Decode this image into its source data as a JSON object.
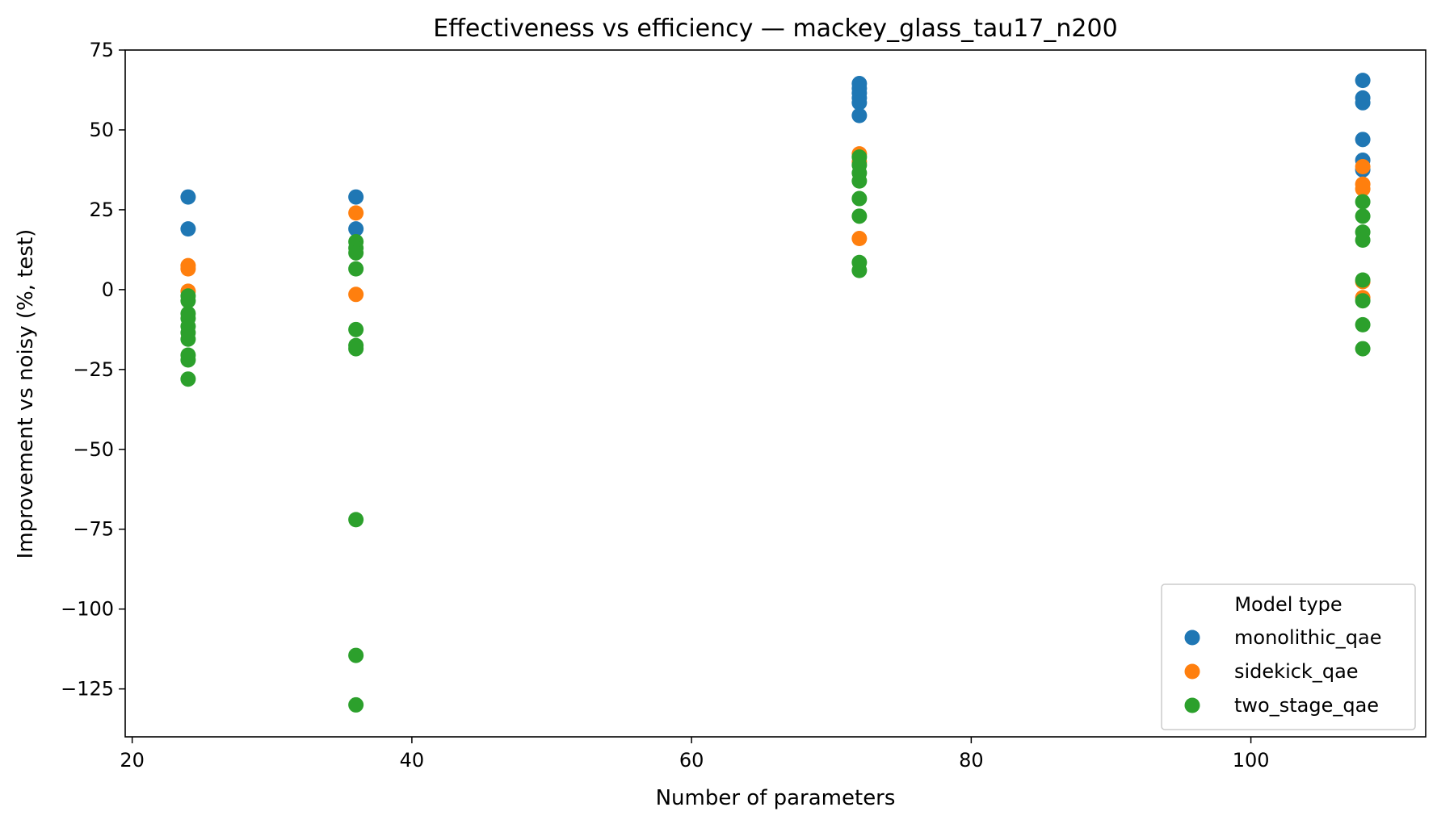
{
  "chart_data": {
    "type": "scatter",
    "title": "Effectiveness vs efficiency — mackey_glass_tau17_n200",
    "xlabel": "Number of parameters",
    "ylabel": "Improvement vs noisy (%, test)",
    "xlim": [
      19.5,
      112.5
    ],
    "ylim": [
      -140,
      75
    ],
    "xticks": [
      20,
      40,
      60,
      80,
      100
    ],
    "yticks": [
      75,
      50,
      25,
      0,
      -25,
      -50,
      -75,
      -100,
      -125
    ],
    "xtick_labels": [
      "20",
      "40",
      "60",
      "80",
      "100"
    ],
    "ytick_labels": [
      "75",
      "50",
      "25",
      "0",
      "−25",
      "−50",
      "−75",
      "−100",
      "−125"
    ],
    "grid": false,
    "legend": {
      "title": "Model type",
      "placement": "lower-right"
    },
    "series": [
      {
        "name": "monolithic_qae",
        "color": "#1f77b4",
        "points": [
          [
            24,
            29
          ],
          [
            24,
            19
          ],
          [
            36,
            29
          ],
          [
            36,
            19
          ],
          [
            72,
            64.5
          ],
          [
            72,
            63
          ],
          [
            72,
            61.5
          ],
          [
            72,
            60
          ],
          [
            72,
            58.5
          ],
          [
            72,
            54.5
          ],
          [
            108,
            65.5
          ],
          [
            108,
            60
          ],
          [
            108,
            58.5
          ],
          [
            108,
            47
          ],
          [
            108,
            40.5
          ],
          [
            108,
            37.5
          ]
        ]
      },
      {
        "name": "sidekick_qae",
        "color": "#ff7f0e",
        "points": [
          [
            24,
            7.5
          ],
          [
            24,
            6.5
          ],
          [
            24,
            -0.5
          ],
          [
            36,
            24
          ],
          [
            36,
            -1.5
          ],
          [
            72,
            42.5
          ],
          [
            72,
            40
          ],
          [
            72,
            16
          ],
          [
            108,
            38.5
          ],
          [
            108,
            33
          ],
          [
            108,
            31.5
          ],
          [
            108,
            2.5
          ],
          [
            108,
            -2.5
          ]
        ]
      },
      {
        "name": "two_stage_qae",
        "color": "#2ca02c",
        "points": [
          [
            24,
            -2
          ],
          [
            24,
            -3.5
          ],
          [
            24,
            -7.5
          ],
          [
            24,
            -9
          ],
          [
            24,
            -11.5
          ],
          [
            24,
            -13.5
          ],
          [
            24,
            -15.5
          ],
          [
            24,
            -20.5
          ],
          [
            24,
            -22
          ],
          [
            24,
            -28
          ],
          [
            36,
            15
          ],
          [
            36,
            13
          ],
          [
            36,
            11.5
          ],
          [
            36,
            6.5
          ],
          [
            36,
            -12.5
          ],
          [
            36,
            -17.5
          ],
          [
            36,
            -18.5
          ],
          [
            36,
            -72
          ],
          [
            36,
            -114.5
          ],
          [
            36,
            -130
          ],
          [
            72,
            41.5
          ],
          [
            72,
            39
          ],
          [
            72,
            36.5
          ],
          [
            72,
            34
          ],
          [
            72,
            28.5
          ],
          [
            72,
            23
          ],
          [
            72,
            8.5
          ],
          [
            72,
            6
          ],
          [
            108,
            27.5
          ],
          [
            108,
            23
          ],
          [
            108,
            18
          ],
          [
            108,
            15.5
          ],
          [
            108,
            3
          ],
          [
            108,
            -3.5
          ],
          [
            108,
            -11
          ],
          [
            108,
            -18.5
          ]
        ]
      }
    ]
  }
}
